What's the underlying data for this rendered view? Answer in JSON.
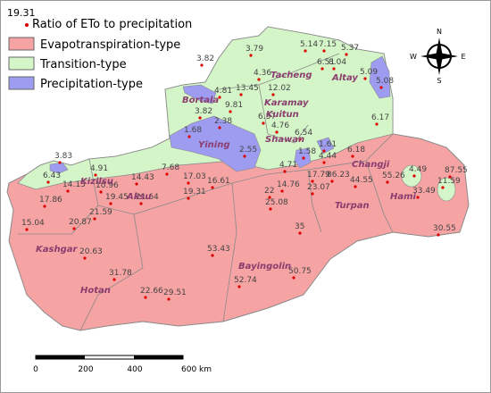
{
  "legend": {
    "sample_value": "19.31",
    "title": "Ratio of ETo to precipitation",
    "items": [
      {
        "label": "Evapotranspiration-type",
        "color": "#f5a3a3"
      },
      {
        "label": "Transition-type",
        "color": "#d4f5c8"
      },
      {
        "label": "Precipitation-type",
        "color": "#9d9cf0"
      }
    ]
  },
  "regions": [
    "Tacheng",
    "Altay",
    "Bortala",
    "Karamay",
    "Kuitun",
    "Shawan",
    "Yining",
    "Changji",
    "Kizilsu",
    "Aksu",
    "Turpan",
    "Hami",
    "Kashgar",
    "Bayingolin",
    "Hotan"
  ],
  "stations": [
    3.79,
    5.14,
    7.15,
    5.37,
    6.51,
    8.04,
    4.36,
    5.09,
    5.08,
    3.82,
    4.81,
    13.45,
    12.02,
    9.81,
    3.82,
    6.57,
    4.76,
    6.54,
    6.17,
    1.68,
    2.38,
    2.55,
    1.58,
    1.61,
    4.44,
    6.18,
    3.83,
    4.91,
    7.68,
    14.43,
    4.71,
    6.43,
    14.13,
    10.96,
    17.03,
    16.61,
    19.31,
    17.86,
    19.45,
    21.64,
    22,
    14.76,
    17.79,
    86.23,
    44.55,
    55.26,
    4.49,
    87.55,
    11.59,
    33.49,
    23.07,
    25.08,
    20.87,
    21.59,
    15.04,
    35,
    30.55,
    20.63,
    53.43,
    31.78,
    50.75,
    52.74,
    22.66,
    29.51
  ],
  "scale_bar": [
    "0",
    "200",
    "400",
    "600 km"
  ],
  "compass": [
    "N",
    "E",
    "S",
    "W"
  ]
}
